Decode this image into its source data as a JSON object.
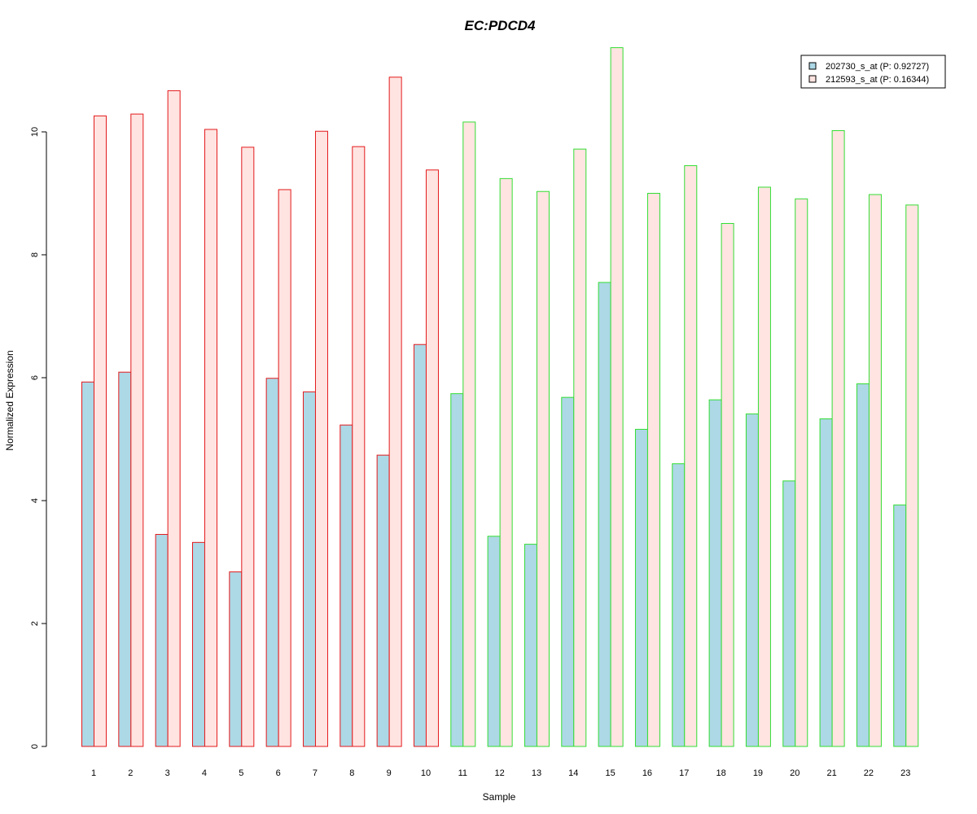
{
  "chart_data": {
    "type": "bar",
    "title": "EC:PDCD4",
    "xlabel": "Sample",
    "ylabel": "Normalized Expression",
    "ylim": [
      0,
      11.4
    ],
    "yticks": [
      "0",
      "2",
      "4",
      "6",
      "8",
      "10"
    ],
    "categories": [
      "1",
      "2",
      "3",
      "4",
      "5",
      "6",
      "7",
      "8",
      "9",
      "10",
      "11",
      "12",
      "13",
      "14",
      "15",
      "16",
      "17",
      "18",
      "19",
      "20",
      "21",
      "22",
      "23"
    ],
    "series": [
      {
        "name": "202730_s_at (P: 0.92727)",
        "values": [
          5.93,
          6.09,
          3.45,
          3.32,
          2.84,
          5.99,
          5.77,
          5.23,
          4.74,
          6.54,
          5.74,
          3.42,
          3.29,
          5.68,
          7.55,
          5.16,
          4.6,
          5.64,
          5.41,
          4.32,
          5.33,
          5.9,
          3.93
        ]
      },
      {
        "name": "212593_s_at (P: 0.16344)",
        "values": [
          10.26,
          10.29,
          10.67,
          10.04,
          9.75,
          9.06,
          10.01,
          9.76,
          10.89,
          9.38,
          10.16,
          9.24,
          9.03,
          9.72,
          11.37,
          9.0,
          9.45,
          8.51,
          9.1,
          8.91,
          10.02,
          8.98,
          8.81
        ]
      }
    ],
    "group_border": [
      "red",
      "red",
      "red",
      "red",
      "red",
      "red",
      "red",
      "red",
      "red",
      "red",
      "green",
      "green",
      "green",
      "green",
      "green",
      "green",
      "green",
      "green",
      "green",
      "green",
      "green",
      "green",
      "green"
    ],
    "legend_position": "top-right",
    "grid": false
  },
  "colors": {
    "series_fill": [
      "#add8e6",
      "#ffe4e1"
    ],
    "group_border": {
      "red": "#e31a1c",
      "green": "#33dd33"
    },
    "title": "#0000cc",
    "axis": "#000000"
  }
}
